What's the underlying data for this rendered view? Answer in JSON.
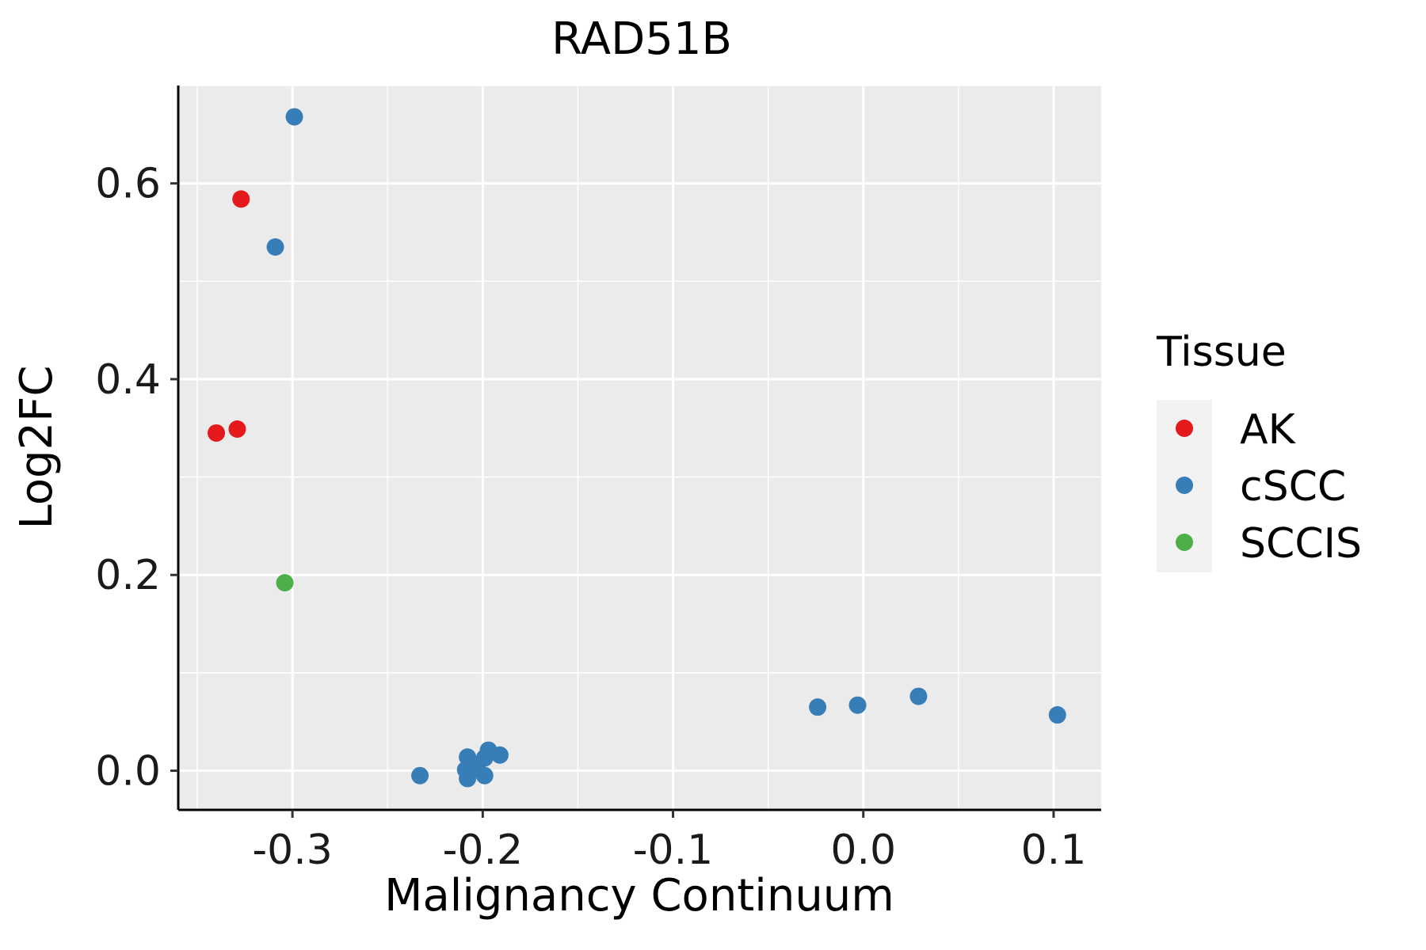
{
  "chart_data": {
    "type": "scatter",
    "title": "RAD51B",
    "xlabel": "Malignancy Continuum",
    "ylabel": "Log2FC",
    "xlim": [
      -0.36,
      0.125
    ],
    "ylim": [
      -0.04,
      0.7
    ],
    "x_ticks": [
      -0.3,
      -0.2,
      -0.1,
      0.0,
      0.1
    ],
    "x_tick_labels": [
      "-0.3",
      "-0.2",
      "-0.1",
      "0.0",
      "0.1"
    ],
    "y_ticks": [
      0.0,
      0.2,
      0.4,
      0.6
    ],
    "y_tick_labels": [
      "0.0",
      "0.2",
      "0.4",
      "0.6"
    ],
    "grid": true,
    "legend": {
      "title": "Tissue",
      "position": "right"
    },
    "series": [
      {
        "name": "AK",
        "color": "#e41a1c",
        "points": [
          {
            "x": -0.327,
            "y": 0.584
          },
          {
            "x": -0.34,
            "y": 0.345
          },
          {
            "x": -0.329,
            "y": 0.349
          }
        ]
      },
      {
        "name": "cSCC",
        "color": "#377eb8",
        "points": [
          {
            "x": -0.299,
            "y": 0.668
          },
          {
            "x": -0.309,
            "y": 0.535
          },
          {
            "x": -0.233,
            "y": -0.005
          },
          {
            "x": -0.209,
            "y": 0.001
          },
          {
            "x": -0.208,
            "y": -0.008
          },
          {
            "x": -0.208,
            "y": 0.014
          },
          {
            "x": -0.203,
            "y": 0.003
          },
          {
            "x": -0.199,
            "y": -0.005
          },
          {
            "x": -0.199,
            "y": 0.013
          },
          {
            "x": -0.197,
            "y": 0.021
          },
          {
            "x": -0.191,
            "y": 0.016
          },
          {
            "x": -0.024,
            "y": 0.065
          },
          {
            "x": -0.003,
            "y": 0.067
          },
          {
            "x": 0.029,
            "y": 0.076
          },
          {
            "x": 0.102,
            "y": 0.057
          }
        ]
      },
      {
        "name": "SCCIS",
        "color": "#4daf4a",
        "points": [
          {
            "x": -0.304,
            "y": 0.192
          }
        ]
      }
    ]
  }
}
